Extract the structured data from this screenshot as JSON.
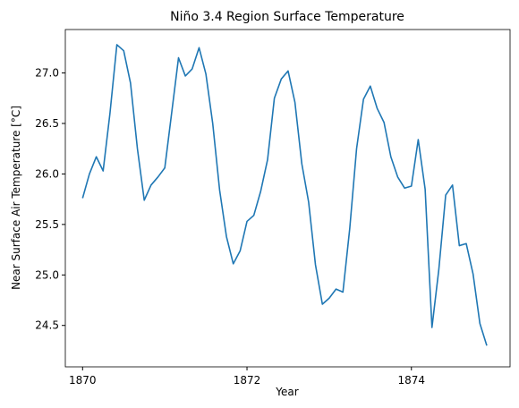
{
  "chart_data": {
    "type": "line",
    "title": "Niño 3.4 Region Surface Temperature",
    "x_label": "Year",
    "y_label": "Near Surface Air Temperature [°C]",
    "x": [
      1870,
      1870.083,
      1870.167,
      1870.25,
      1870.333,
      1870.417,
      1870.5,
      1870.583,
      1870.667,
      1870.75,
      1870.833,
      1870.917,
      1871,
      1871.083,
      1871.167,
      1871.25,
      1871.333,
      1871.417,
      1871.5,
      1871.583,
      1871.667,
      1871.75,
      1871.833,
      1871.917,
      1872,
      1872.083,
      1872.167,
      1872.25,
      1872.333,
      1872.417,
      1872.5,
      1872.583,
      1872.667,
      1872.75,
      1872.833,
      1872.917,
      1873,
      1873.083,
      1873.167,
      1873.25,
      1873.333,
      1873.417,
      1873.5,
      1873.583,
      1873.667,
      1873.75,
      1873.833,
      1873.917,
      1874,
      1874.083,
      1874.167,
      1874.25,
      1874.333,
      1874.417,
      1874.5,
      1874.583,
      1874.667,
      1874.75,
      1874.833,
      1874.917
    ],
    "series": [
      {
        "name": "Niño 3.4",
        "color": "#1f77b4",
        "values": [
          25.76,
          26.0,
          26.17,
          26.03,
          26.6,
          27.28,
          27.22,
          26.9,
          26.25,
          25.74,
          25.89,
          25.97,
          26.06,
          26.6,
          27.15,
          26.97,
          27.04,
          27.25,
          26.99,
          26.5,
          25.84,
          25.38,
          25.11,
          25.24,
          25.53,
          25.59,
          25.83,
          26.14,
          26.75,
          26.94,
          27.02,
          26.71,
          26.1,
          25.72,
          25.1,
          24.71,
          24.77,
          24.86,
          24.83,
          25.46,
          26.25,
          26.74,
          26.87,
          26.65,
          26.51,
          26.17,
          25.97,
          25.86,
          25.88,
          26.34,
          25.85,
          24.48,
          25.05,
          25.79,
          25.89,
          25.29,
          25.31,
          25.01,
          24.52,
          24.3
        ]
      }
    ],
    "xlim": [
      1869.79,
      1875.2
    ],
    "xticks": [
      1870,
      1872,
      1874
    ],
    "ylim": [
      24.09,
      27.43
    ],
    "yticks": [
      24.5,
      {
        "value": 25.0,
        "label": "25.0"
      },
      25.5,
      {
        "value": 26.0,
        "label": "26.0"
      },
      26.5,
      {
        "value": 27.0,
        "label": "27.0"
      }
    ],
    "grid": false
  }
}
